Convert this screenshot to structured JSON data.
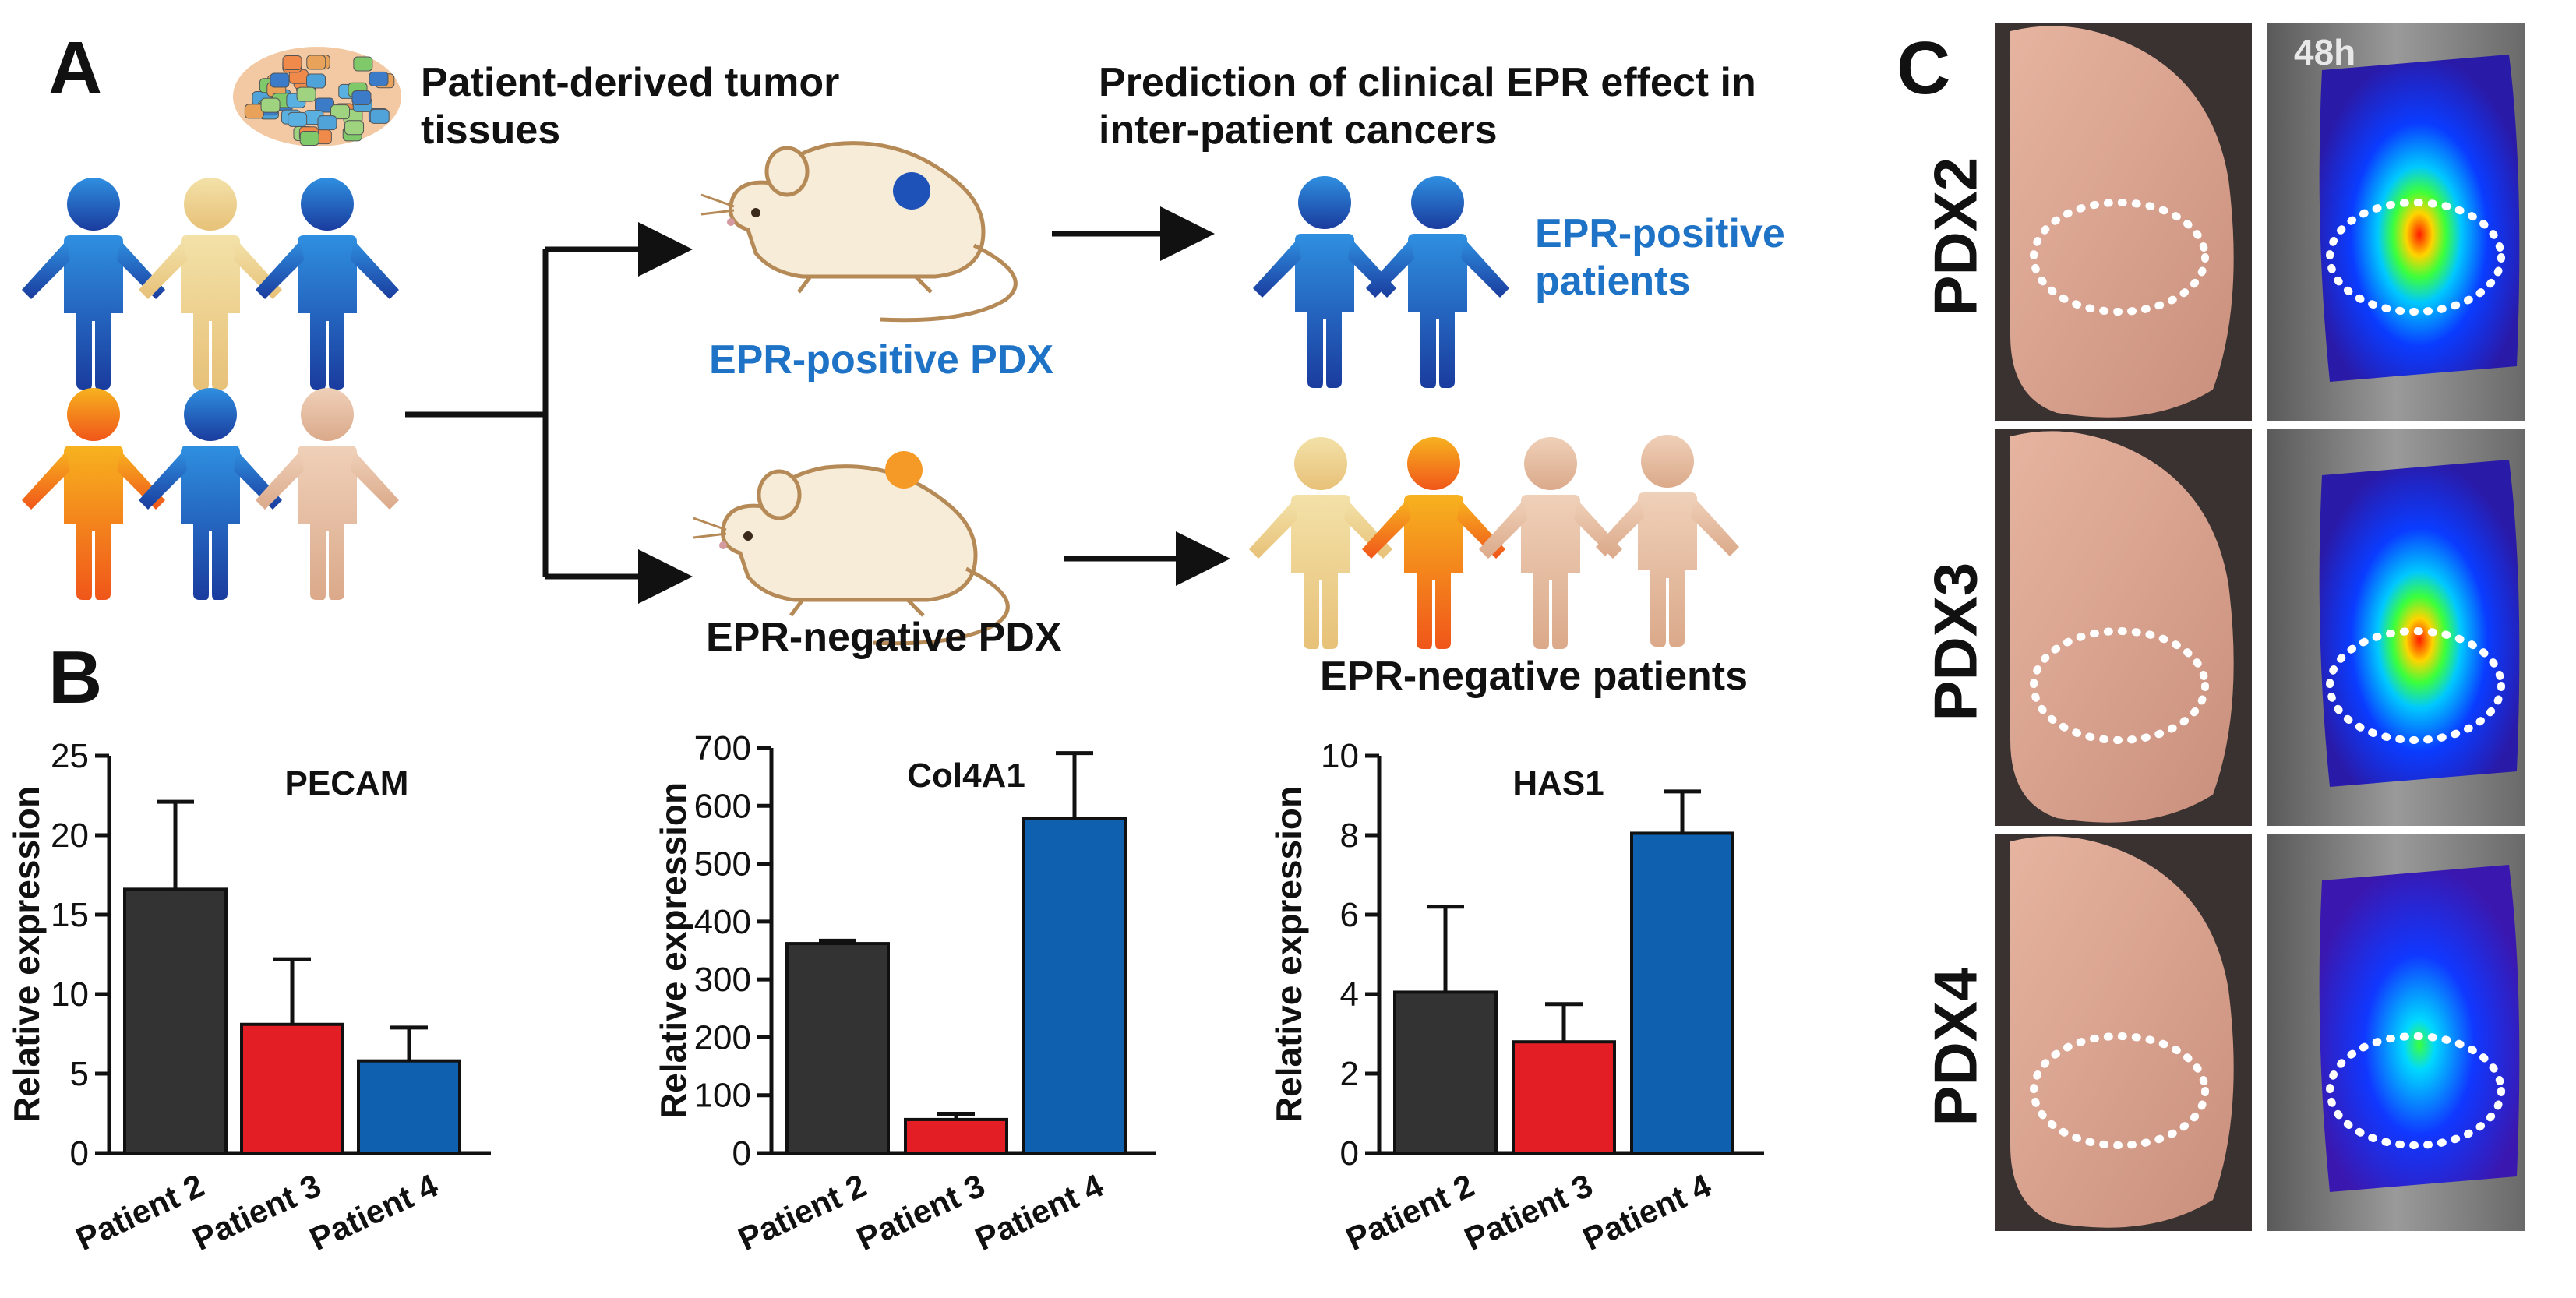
{
  "panels": {
    "a": "A",
    "b": "B",
    "c": "C"
  },
  "panel_a": {
    "tissue_label_1": "Patient-derived tumor",
    "tissue_label_2": "tissues",
    "prediction_label_1": "Prediction of clinical EPR effect in",
    "prediction_label_2": "inter-patient cancers",
    "pos_pdx": "EPR-positive PDX",
    "neg_pdx": "EPR-negative PDX",
    "pos_patients_1": "EPR-positive",
    "pos_patients_2": "patients",
    "neg_patients": "EPR-negative patients"
  },
  "colors": {
    "blue": "#1f73c6",
    "dark_bar": "#333333",
    "red_bar": "#e31e24",
    "blue_bar": "#1060b0",
    "orange_person": "#f39a1e",
    "cream_person": "#ecd59a",
    "peach_person": "#e6bfa2",
    "blue_person": "#2a6fd0"
  },
  "chart_data": [
    {
      "type": "bar",
      "title": "PECAM",
      "ylabel": "Relative expression",
      "categories": [
        "Patient 2",
        "Patient 3",
        "Patient 4"
      ],
      "values": [
        16.6,
        8.1,
        5.8
      ],
      "errors": [
        5.5,
        4.1,
        2.1
      ],
      "ylim": [
        0,
        25
      ],
      "yticks": [
        0,
        5,
        10,
        15,
        20,
        25
      ]
    },
    {
      "type": "bar",
      "title": "Col4A1",
      "ylabel": "Relative expression",
      "categories": [
        "Patient 2",
        "Patient 3",
        "Patient 4"
      ],
      "values": [
        362,
        58,
        578
      ],
      "errors": [
        5,
        10,
        113
      ],
      "ylim": [
        0,
        700
      ],
      "yticks": [
        0,
        100,
        200,
        300,
        400,
        500,
        600,
        700
      ]
    },
    {
      "type": "bar",
      "title": "HAS1",
      "ylabel": "Relative expression",
      "categories": [
        "Patient 2",
        "Patient 3",
        "Patient 4"
      ],
      "values": [
        4.05,
        2.8,
        8.05
      ],
      "errors": [
        2.15,
        0.95,
        1.05
      ],
      "ylim": [
        0,
        10
      ],
      "yticks": [
        0,
        2,
        4,
        6,
        8,
        10
      ]
    }
  ],
  "panel_c": {
    "timepoint": "48h",
    "rows": [
      "PDX2",
      "PDX3",
      "PDX4"
    ]
  }
}
